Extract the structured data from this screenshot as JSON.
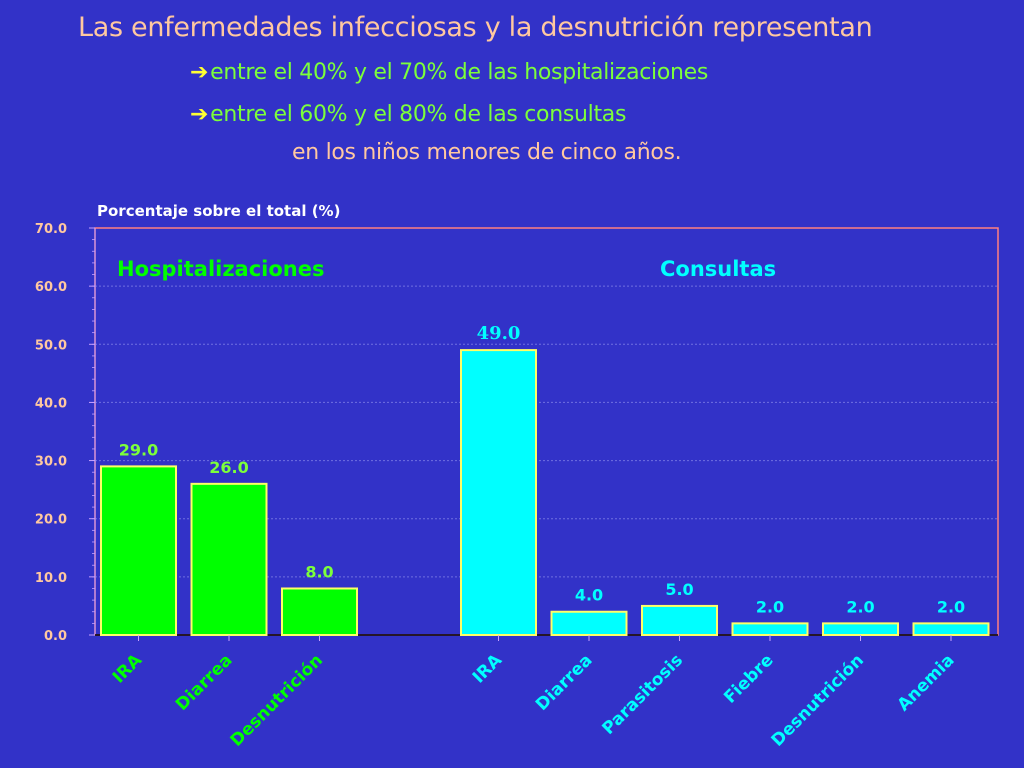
{
  "slide": {
    "title": "Las enfermedades infecciosas y la desnutrición representan",
    "bullets": [
      "entre el 40% y el 70% de las hospitalizaciones",
      "entre el 60% y el 80% de las consultas"
    ],
    "subline": "en los niños menores de cinco años."
  },
  "colors": {
    "background": "#3232c8",
    "hospitalizaciones": "#00ff00",
    "consultas": "#00ffff",
    "bar_border": "#ffff66",
    "title": "#ffc8a0",
    "bullet": "#7cff3a"
  },
  "chart_data": {
    "type": "bar",
    "ylabel": "Porcentaje sobre el total (%)",
    "ylim": [
      0,
      70
    ],
    "yticks": [
      "0.0",
      "10.0",
      "20.0",
      "30.0",
      "40.0",
      "50.0",
      "60.0",
      "70.0"
    ],
    "grid": true,
    "groups": [
      {
        "name": "Hospitalizaciones",
        "color": "#00ff00",
        "categories": [
          "IRA",
          "Diarrea",
          "Desnutrición"
        ],
        "values": [
          29.0,
          26.0,
          8.0
        ],
        "labels": [
          "29.0",
          "26.0",
          "8.0"
        ]
      },
      {
        "name": "Consultas",
        "color": "#00ffff",
        "categories": [
          "IRA",
          "Diarrea",
          "Parasitosis",
          "Fiebre",
          "Desnutrición",
          "Anemia"
        ],
        "values": [
          49.0,
          4.0,
          5.0,
          2.0,
          2.0,
          2.0
        ],
        "labels": [
          "49.0",
          "4.0",
          "5.0",
          "2.0",
          "2.0",
          "2.0"
        ]
      }
    ]
  }
}
